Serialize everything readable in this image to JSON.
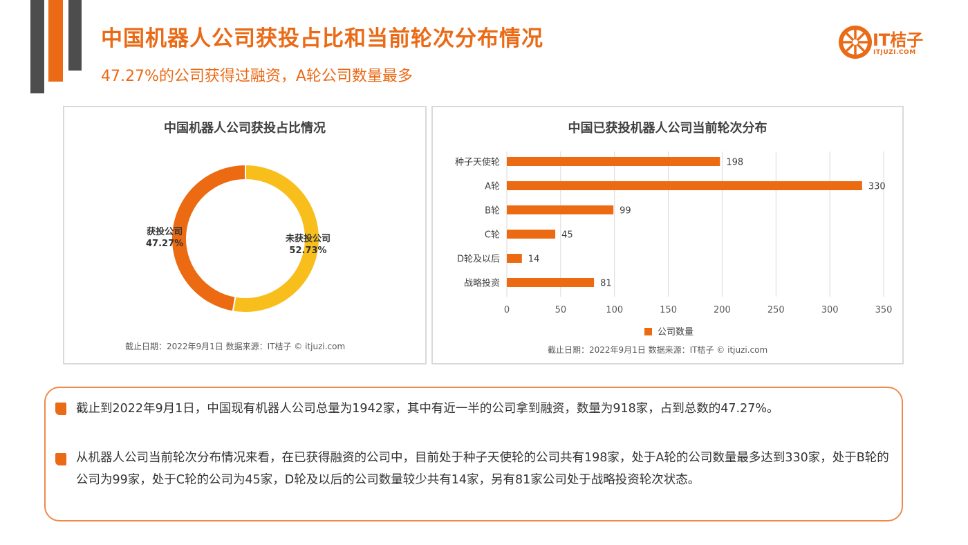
{
  "header": {
    "title": "中国机器人公司获投占比和当前轮次分布情况",
    "subtitle": "47.27%的公司获得过融资，A轮公司数量最多"
  },
  "logo": {
    "text": "IT桔子",
    "sub": "ITJUZI.COM"
  },
  "colors": {
    "accent": "#ea6a16",
    "funded": "#eb6a12",
    "unfunded": "#f8be1c",
    "bar": "#eb6a12"
  },
  "donut_panel": {
    "title": "中国机器人公司获投占比情况",
    "source": "截止日期：2022年9月1日     数据来源：IT桔子 © itjuzi.com"
  },
  "bar_panel": {
    "title": "中国已获投机器人公司当前轮次分布",
    "source": "截止日期：2022年9月1日     数据来源：IT桔子 © itjuzi.com"
  },
  "chart_data": [
    {
      "type": "pie",
      "title": "中国机器人公司获投占比情况",
      "slices": [
        {
          "name": "获投公司",
          "label": "47.27%",
          "value": 47.27
        },
        {
          "name": "未获投公司",
          "label": "52.73%",
          "value": 52.73
        }
      ]
    },
    {
      "type": "bar",
      "orientation": "horizontal",
      "title": "中国已获投机器人公司当前轮次分布",
      "categories": [
        "种子天使轮",
        "A轮",
        "B轮",
        "C轮",
        "D轮及以后",
        "战略投资"
      ],
      "series": [
        {
          "name": "公司数量",
          "values": [
            198,
            330,
            99,
            45,
            14,
            81
          ]
        }
      ],
      "xlim": [
        0,
        350
      ],
      "xticks": [
        "0",
        "50",
        "100",
        "150",
        "200",
        "250",
        "300",
        "350"
      ],
      "grid": true,
      "legend": "bottom"
    }
  ],
  "summary": {
    "p1": "截止到2022年9月1日，中国现有机器人公司总量为1942家，其中有近一半的公司拿到融资，数量为918家，占到总数的47.27%。",
    "p2": "从机器人公司当前轮次分布情况来看，在已获得融资的公司中，目前处于种子天使轮的公司共有198家，处于A轮的公司数量最多达到330家，处于B轮的公司为99家，处于C轮的公司为45家，D轮及以后的公司数量较少共有14家，另有81家公司处于战略投资轮次状态。"
  }
}
